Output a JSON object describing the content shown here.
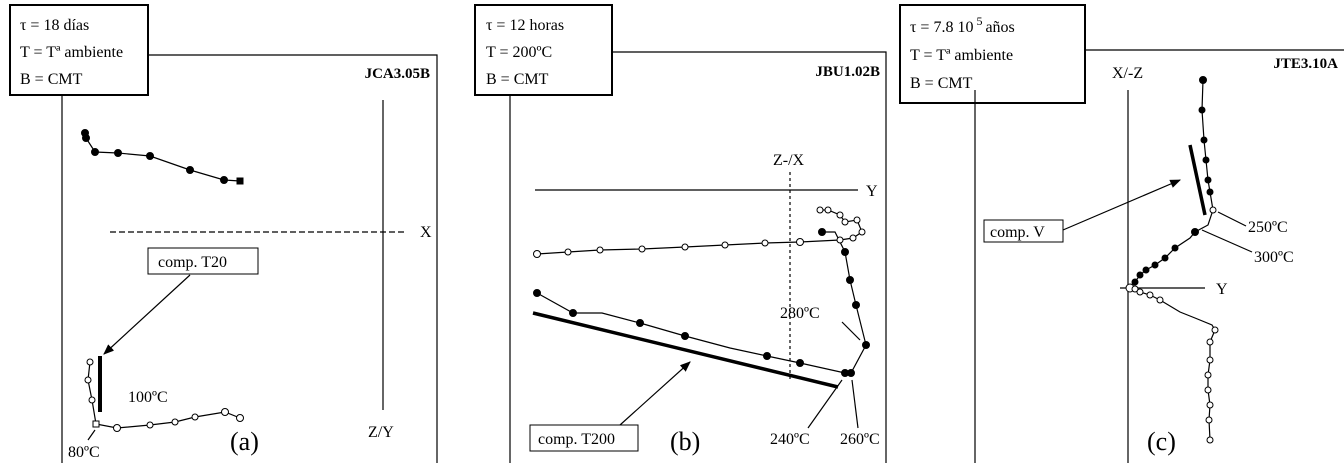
{
  "panels": [
    {
      "info": [
        "τ = 18 días",
        "T = Tª ambiente",
        "B = CMT"
      ],
      "sample": "JCA3.05B",
      "axis_h": "X",
      "axis_v": "Z/Y",
      "component": "comp. T20",
      "annotations": [
        "100ºC",
        "80ºC"
      ],
      "letter": "(a)"
    },
    {
      "info": [
        "τ = 12 horas",
        "T = 200ºC",
        "B = CMT"
      ],
      "sample": "JBU1.02B",
      "axis_h": "Y",
      "axis_v": "Z-/X",
      "component": "comp. T200",
      "annotations": [
        "280ºC",
        "240ºC",
        "260ºC"
      ],
      "letter": "(b)"
    },
    {
      "info_first": {
        "text": "τ = 7.8 10",
        "sup": "5",
        "after": "años"
      },
      "info": [
        "T = Tª ambiente",
        "B = CMT"
      ],
      "sample": "JTE3.10A",
      "axis_h": "Y",
      "axis_v": "X/-Z",
      "component": "comp. V",
      "annotations": [
        "250ºC",
        "300ºC"
      ],
      "letter": "(c)"
    }
  ]
}
